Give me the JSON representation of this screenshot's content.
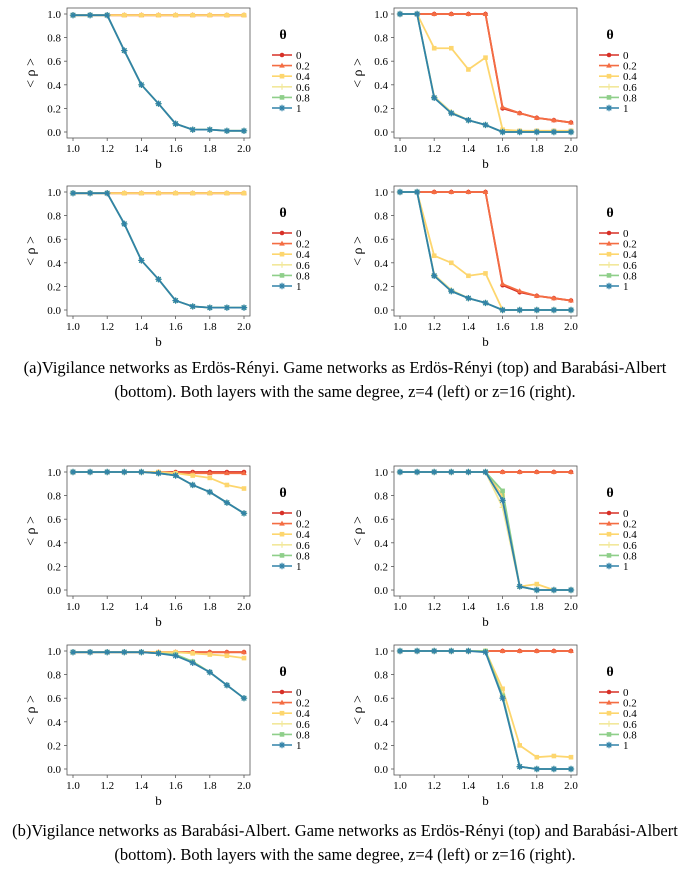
{
  "legend_title": "θ",
  "legend_entries": [
    "0",
    "0.2",
    "0.4",
    "0.6",
    "0.8",
    "1"
  ],
  "series_colors": [
    "#d73027",
    "#f46d43",
    "#fdd66e",
    "#f2e89b",
    "#8fcf8a",
    "#3182a8"
  ],
  "series_markers": [
    "circle",
    "triangle",
    "square",
    "plus",
    "square",
    "asterisk"
  ],
  "axis": {
    "xlabel": "b",
    "ylabel": "< ρ >",
    "x_ticks": [
      "1.0",
      "1.2",
      "1.4",
      "1.6",
      "1.8",
      "2.0"
    ],
    "y_ticks": [
      "0.0",
      "0.2",
      "0.4",
      "0.6",
      "0.8",
      "1.0"
    ]
  },
  "captions": [
    "(a)Vigilance networks as Erdös-Rényi. Game networks as Erdös-Rényi (top) and Barabási-Albert (bottom). Both layers with the same degree, z=4 (left) or z=16 (right).",
    "(b)Vigilance networks as Barabási-Albert. Game networks as Erdös-Rényi (top) and Barabási-Albert (bottom). Both layers with the same degree, z=4 (left) or z=16 (right)."
  ],
  "chart_data": [
    {
      "type": "line",
      "panel": "a-top-left",
      "x": [
        1.0,
        1.1,
        1.2,
        1.3,
        1.4,
        1.5,
        1.6,
        1.7,
        1.8,
        1.9,
        2.0
      ],
      "xlim": [
        1.0,
        2.0
      ],
      "ylim": [
        0,
        1.0
      ],
      "xlabel": "b",
      "ylabel": "< ρ >",
      "series": [
        {
          "name": "0",
          "values": [
            0.99,
            0.99,
            0.99,
            0.99,
            0.99,
            0.99,
            0.99,
            0.99,
            0.99,
            0.99,
            0.99
          ]
        },
        {
          "name": "0.2",
          "values": [
            0.99,
            0.99,
            0.99,
            0.99,
            0.99,
            0.99,
            0.99,
            0.99,
            0.99,
            0.99,
            0.99
          ]
        },
        {
          "name": "0.4",
          "values": [
            0.99,
            0.99,
            0.99,
            0.99,
            0.99,
            0.99,
            0.99,
            0.99,
            0.99,
            0.99,
            0.99
          ]
        },
        {
          "name": "0.6",
          "values": [
            0.99,
            0.99,
            0.99,
            0.69,
            0.4,
            0.24,
            0.07,
            0.02,
            0.02,
            0.01,
            0.01
          ]
        },
        {
          "name": "0.8",
          "values": [
            0.99,
            0.99,
            0.99,
            0.69,
            0.4,
            0.24,
            0.07,
            0.02,
            0.02,
            0.01,
            0.01
          ]
        },
        {
          "name": "1",
          "values": [
            0.99,
            0.99,
            0.99,
            0.69,
            0.4,
            0.24,
            0.07,
            0.02,
            0.02,
            0.01,
            0.01
          ]
        }
      ]
    },
    {
      "type": "line",
      "panel": "a-top-right",
      "x": [
        1.0,
        1.1,
        1.2,
        1.3,
        1.4,
        1.5,
        1.6,
        1.7,
        1.8,
        1.9,
        2.0
      ],
      "xlim": [
        1.0,
        2.0
      ],
      "ylim": [
        0,
        1.0
      ],
      "xlabel": "b",
      "ylabel": "< ρ >",
      "series": [
        {
          "name": "0",
          "values": [
            1.0,
            1.0,
            1.0,
            1.0,
            1.0,
            1.0,
            0.2,
            0.16,
            0.12,
            0.1,
            0.08
          ]
        },
        {
          "name": "0.2",
          "values": [
            1.0,
            1.0,
            1.0,
            1.0,
            1.0,
            1.0,
            0.21,
            0.16,
            0.12,
            0.1,
            0.08
          ]
        },
        {
          "name": "0.4",
          "values": [
            1.0,
            1.0,
            0.71,
            0.71,
            0.53,
            0.63,
            0.02,
            0.01,
            0.01,
            0.01,
            0.01
          ]
        },
        {
          "name": "0.6",
          "values": [
            1.0,
            1.0,
            0.3,
            0.17,
            0.1,
            0.06,
            0.0,
            0.0,
            0.0,
            0.0,
            0.0
          ]
        },
        {
          "name": "0.8",
          "values": [
            1.0,
            1.0,
            0.29,
            0.16,
            0.1,
            0.06,
            0.0,
            0.0,
            0.0,
            0.0,
            0.0
          ]
        },
        {
          "name": "1",
          "values": [
            1.0,
            1.0,
            0.29,
            0.16,
            0.1,
            0.06,
            0.0,
            0.0,
            0.0,
            0.0,
            0.0
          ]
        }
      ]
    },
    {
      "type": "line",
      "panel": "a-bottom-left",
      "x": [
        1.0,
        1.1,
        1.2,
        1.3,
        1.4,
        1.5,
        1.6,
        1.7,
        1.8,
        1.9,
        2.0
      ],
      "xlim": [
        1.0,
        2.0
      ],
      "ylim": [
        0,
        1.0
      ],
      "xlabel": "b",
      "ylabel": "< ρ >",
      "series": [
        {
          "name": "0",
          "values": [
            0.99,
            0.99,
            0.99,
            0.99,
            0.99,
            0.99,
            0.99,
            0.99,
            0.99,
            0.99,
            0.99
          ]
        },
        {
          "name": "0.2",
          "values": [
            0.99,
            0.99,
            0.99,
            0.99,
            0.99,
            0.99,
            0.99,
            0.99,
            0.99,
            0.99,
            0.99
          ]
        },
        {
          "name": "0.4",
          "values": [
            0.99,
            0.99,
            0.99,
            0.99,
            0.99,
            0.99,
            0.99,
            0.99,
            0.99,
            0.99,
            0.99
          ]
        },
        {
          "name": "0.6",
          "values": [
            0.99,
            0.99,
            0.99,
            0.73,
            0.42,
            0.26,
            0.08,
            0.03,
            0.02,
            0.02,
            0.02
          ]
        },
        {
          "name": "0.8",
          "values": [
            0.99,
            0.99,
            0.99,
            0.73,
            0.42,
            0.26,
            0.08,
            0.03,
            0.02,
            0.02,
            0.02
          ]
        },
        {
          "name": "1",
          "values": [
            0.99,
            0.99,
            0.99,
            0.73,
            0.42,
            0.26,
            0.08,
            0.03,
            0.02,
            0.02,
            0.02
          ]
        }
      ]
    },
    {
      "type": "line",
      "panel": "a-bottom-right",
      "x": [
        1.0,
        1.1,
        1.2,
        1.3,
        1.4,
        1.5,
        1.6,
        1.7,
        1.8,
        1.9,
        2.0
      ],
      "xlim": [
        1.0,
        2.0
      ],
      "ylim": [
        0,
        1.0
      ],
      "xlabel": "b",
      "ylabel": "< ρ >",
      "series": [
        {
          "name": "0",
          "values": [
            1.0,
            1.0,
            1.0,
            1.0,
            1.0,
            1.0,
            0.21,
            0.15,
            0.12,
            0.1,
            0.08
          ]
        },
        {
          "name": "0.2",
          "values": [
            1.0,
            1.0,
            1.0,
            1.0,
            1.0,
            1.0,
            0.22,
            0.16,
            0.12,
            0.1,
            0.08
          ]
        },
        {
          "name": "0.4",
          "values": [
            1.0,
            1.0,
            0.46,
            0.4,
            0.29,
            0.31,
            0.0,
            0.0,
            0.0,
            0.0,
            0.0
          ]
        },
        {
          "name": "0.6",
          "values": [
            1.0,
            1.0,
            0.3,
            0.17,
            0.1,
            0.06,
            0.0,
            0.0,
            0.0,
            0.0,
            0.0
          ]
        },
        {
          "name": "0.8",
          "values": [
            1.0,
            1.0,
            0.29,
            0.16,
            0.1,
            0.06,
            0.0,
            0.0,
            0.0,
            0.0,
            0.0
          ]
        },
        {
          "name": "1",
          "values": [
            1.0,
            1.0,
            0.29,
            0.16,
            0.1,
            0.06,
            0.0,
            0.0,
            0.0,
            0.0,
            0.0
          ]
        }
      ]
    },
    {
      "type": "line",
      "panel": "b-top-left",
      "x": [
        1.0,
        1.1,
        1.2,
        1.3,
        1.4,
        1.5,
        1.6,
        1.7,
        1.8,
        1.9,
        2.0
      ],
      "xlim": [
        1.0,
        2.0
      ],
      "ylim": [
        0,
        1.0
      ],
      "xlabel": "b",
      "ylabel": "< ρ >",
      "series": [
        {
          "name": "0",
          "values": [
            1.0,
            1.0,
            1.0,
            1.0,
            1.0,
            1.0,
            1.0,
            1.0,
            1.0,
            1.0,
            1.0
          ]
        },
        {
          "name": "0.2",
          "values": [
            1.0,
            1.0,
            1.0,
            1.0,
            1.0,
            1.0,
            0.99,
            0.99,
            0.99,
            0.99,
            0.99
          ]
        },
        {
          "name": "0.4",
          "values": [
            1.0,
            1.0,
            1.0,
            1.0,
            1.0,
            1.0,
            0.99,
            0.97,
            0.95,
            0.89,
            0.86
          ]
        },
        {
          "name": "0.6",
          "values": [
            1.0,
            1.0,
            1.0,
            1.0,
            1.0,
            0.99,
            0.97,
            0.89,
            0.83,
            0.74,
            0.65
          ]
        },
        {
          "name": "0.8",
          "values": [
            1.0,
            1.0,
            1.0,
            1.0,
            1.0,
            0.99,
            0.97,
            0.89,
            0.83,
            0.74,
            0.65
          ]
        },
        {
          "name": "1",
          "values": [
            1.0,
            1.0,
            1.0,
            1.0,
            1.0,
            0.99,
            0.97,
            0.89,
            0.83,
            0.74,
            0.65
          ]
        }
      ]
    },
    {
      "type": "line",
      "panel": "b-top-right",
      "x": [
        1.0,
        1.1,
        1.2,
        1.3,
        1.4,
        1.5,
        1.6,
        1.7,
        1.8,
        1.9,
        2.0
      ],
      "xlim": [
        1.0,
        2.0
      ],
      "ylim": [
        0,
        1.0
      ],
      "xlabel": "b",
      "ylabel": "< ρ >",
      "series": [
        {
          "name": "0",
          "values": [
            1.0,
            1.0,
            1.0,
            1.0,
            1.0,
            1.0,
            1.0,
            1.0,
            1.0,
            1.0,
            1.0
          ]
        },
        {
          "name": "0.2",
          "values": [
            1.0,
            1.0,
            1.0,
            1.0,
            1.0,
            1.0,
            1.0,
            1.0,
            1.0,
            1.0,
            1.0
          ]
        },
        {
          "name": "0.4",
          "values": [
            1.0,
            1.0,
            1.0,
            1.0,
            1.0,
            1.0,
            0.8,
            0.03,
            0.05,
            0.0,
            0.0
          ]
        },
        {
          "name": "0.6",
          "values": [
            1.0,
            1.0,
            1.0,
            1.0,
            1.0,
            1.0,
            0.7,
            0.03,
            0.0,
            0.0,
            0.0
          ]
        },
        {
          "name": "0.8",
          "values": [
            1.0,
            1.0,
            1.0,
            1.0,
            1.0,
            1.0,
            0.84,
            0.03,
            0.0,
            0.0,
            0.0
          ]
        },
        {
          "name": "1",
          "values": [
            1.0,
            1.0,
            1.0,
            1.0,
            1.0,
            1.0,
            0.76,
            0.03,
            0.0,
            0.0,
            0.0
          ]
        }
      ]
    },
    {
      "type": "line",
      "panel": "b-bottom-left",
      "x": [
        1.0,
        1.1,
        1.2,
        1.3,
        1.4,
        1.5,
        1.6,
        1.7,
        1.8,
        1.9,
        2.0
      ],
      "xlim": [
        1.0,
        2.0
      ],
      "ylim": [
        0,
        1.0
      ],
      "xlabel": "b",
      "ylabel": "< ρ >",
      "series": [
        {
          "name": "0",
          "values": [
            0.99,
            0.99,
            0.99,
            0.99,
            0.99,
            0.99,
            0.99,
            0.99,
            0.99,
            0.99,
            0.99
          ]
        },
        {
          "name": "0.2",
          "values": [
            0.99,
            0.99,
            0.99,
            0.99,
            0.99,
            0.99,
            0.99,
            0.99,
            0.99,
            0.99,
            0.99
          ]
        },
        {
          "name": "0.4",
          "values": [
            0.99,
            0.99,
            0.99,
            0.99,
            0.99,
            0.99,
            0.99,
            0.98,
            0.97,
            0.96,
            0.94
          ]
        },
        {
          "name": "0.6",
          "values": [
            0.99,
            0.99,
            0.99,
            0.99,
            0.99,
            0.98,
            0.97,
            0.91,
            0.82,
            0.71,
            0.6
          ]
        },
        {
          "name": "0.8",
          "values": [
            0.99,
            0.99,
            0.99,
            0.99,
            0.99,
            0.98,
            0.97,
            0.91,
            0.82,
            0.71,
            0.6
          ]
        },
        {
          "name": "1",
          "values": [
            0.99,
            0.99,
            0.99,
            0.99,
            0.99,
            0.98,
            0.96,
            0.9,
            0.82,
            0.71,
            0.6
          ]
        }
      ]
    },
    {
      "type": "line",
      "panel": "b-bottom-right",
      "x": [
        1.0,
        1.1,
        1.2,
        1.3,
        1.4,
        1.5,
        1.6,
        1.7,
        1.8,
        1.9,
        2.0
      ],
      "xlim": [
        1.0,
        2.0
      ],
      "ylim": [
        0,
        1.0
      ],
      "xlabel": "b",
      "ylabel": "< ρ >",
      "series": [
        {
          "name": "0",
          "values": [
            1.0,
            1.0,
            1.0,
            1.0,
            1.0,
            1.0,
            1.0,
            1.0,
            1.0,
            1.0,
            1.0
          ]
        },
        {
          "name": "0.2",
          "values": [
            1.0,
            1.0,
            1.0,
            1.0,
            1.0,
            1.0,
            1.0,
            1.0,
            1.0,
            1.0,
            1.0
          ]
        },
        {
          "name": "0.4",
          "values": [
            1.0,
            1.0,
            1.0,
            1.0,
            1.0,
            1.0,
            0.68,
            0.2,
            0.1,
            0.11,
            0.1
          ]
        },
        {
          "name": "0.6",
          "values": [
            1.0,
            1.0,
            1.0,
            1.0,
            1.0,
            1.0,
            0.62,
            0.02,
            0.0,
            0.0,
            0.0
          ]
        },
        {
          "name": "0.8",
          "values": [
            1.0,
            1.0,
            1.0,
            1.0,
            1.0,
            1.0,
            0.62,
            0.02,
            0.0,
            0.0,
            0.0
          ]
        },
        {
          "name": "1",
          "values": [
            1.0,
            1.0,
            1.0,
            1.0,
            1.0,
            0.99,
            0.6,
            0.02,
            0.0,
            0.0,
            0.0
          ]
        }
      ]
    }
  ]
}
